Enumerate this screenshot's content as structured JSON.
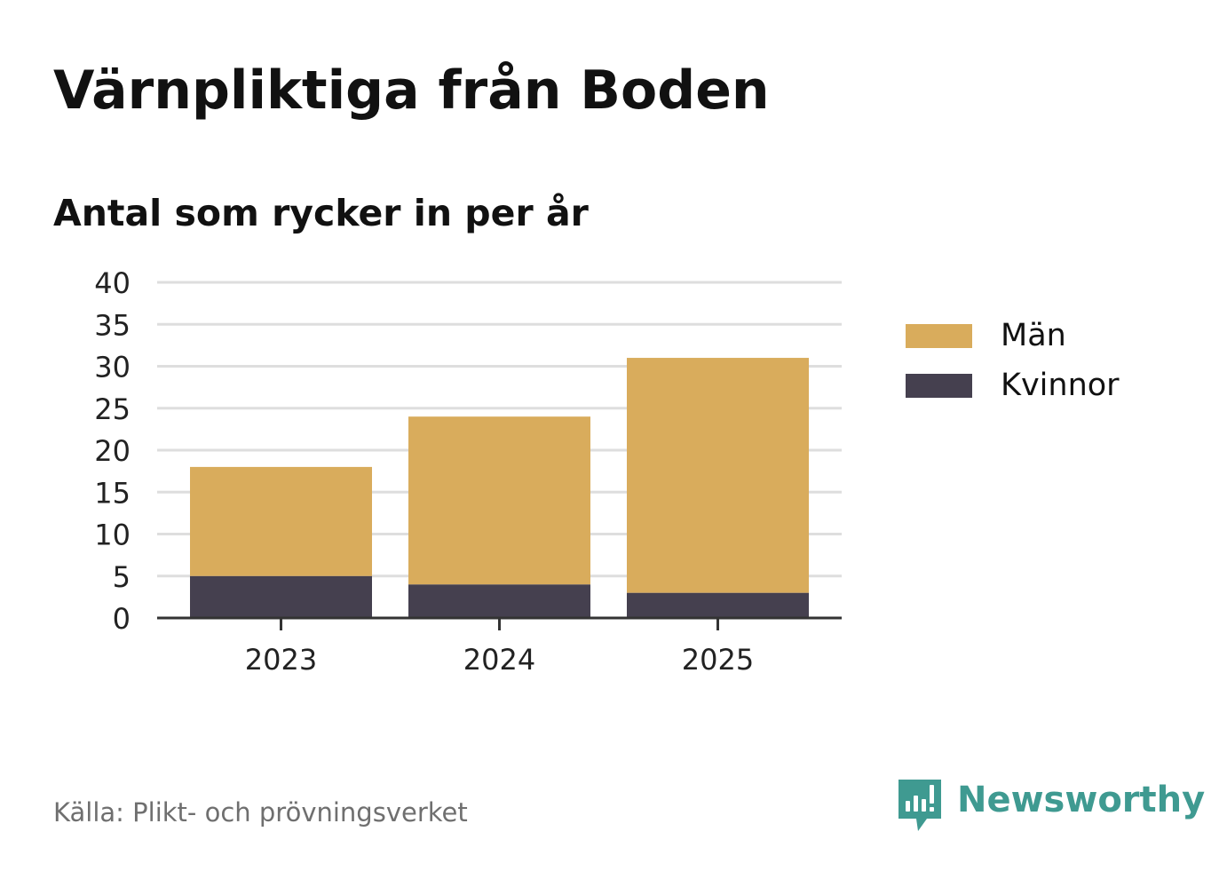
{
  "header": {
    "title": "Värnpliktiga från Boden",
    "subtitle": "Antal som rycker in per år"
  },
  "chart_data": {
    "type": "bar",
    "stacked": true,
    "categories": [
      "2023",
      "2024",
      "2025"
    ],
    "series": [
      {
        "name": "Kvinnor",
        "values": [
          5,
          4,
          3
        ],
        "color": "#45404f"
      },
      {
        "name": "Män",
        "values": [
          13,
          20,
          28
        ],
        "color": "#d9ac5c"
      }
    ],
    "ylim": [
      0,
      40
    ],
    "yticks": [
      0,
      5,
      10,
      15,
      20,
      25,
      30,
      35,
      40
    ],
    "grid": true,
    "legend_position": "right",
    "legend_order": [
      "Män",
      "Kvinnor"
    ]
  },
  "footer": {
    "source": "Källa: Plikt- och prövningsverket",
    "brand": "Newsworthy",
    "brand_icon": "newsworthy-logo-icon",
    "brand_color": "#3f9a91"
  }
}
